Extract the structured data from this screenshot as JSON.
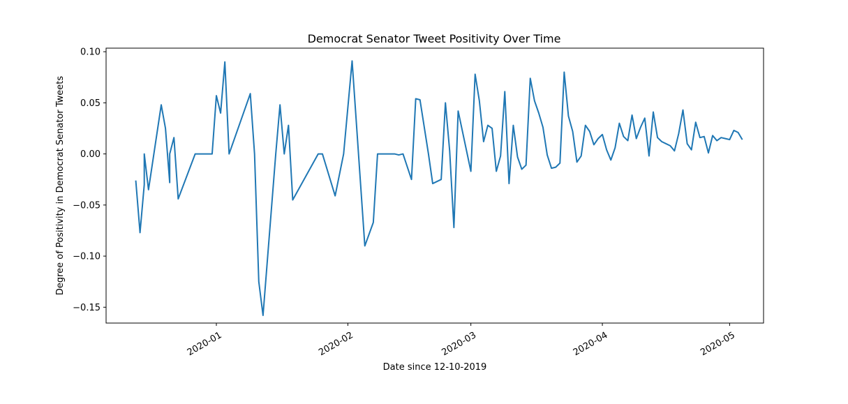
{
  "chart_data": {
    "type": "line",
    "title": "Democrat Senator Tweet Positivity Over Time",
    "xlabel": "Date since 12-10-2019",
    "ylabel": "Degree of Positivity in Democrat Senator Tweets",
    "xlim": [
      "2019-12-06",
      "2020-05-09"
    ],
    "ylim": [
      -0.1655,
      0.1035
    ],
    "x_ticks": [
      {
        "date": "2020-01-01",
        "label": "2020-01"
      },
      {
        "date": "2020-02-01",
        "label": "2020-02"
      },
      {
        "date": "2020-03-01",
        "label": "2020-03"
      },
      {
        "date": "2020-04-01",
        "label": "2020-04"
      },
      {
        "date": "2020-05-01",
        "label": "2020-05"
      }
    ],
    "y_ticks": [
      {
        "value": 0.1,
        "label": "0.10"
      },
      {
        "value": 0.05,
        "label": "0.05"
      },
      {
        "value": 0.0,
        "label": "0.00"
      },
      {
        "value": -0.05,
        "label": "−0.05"
      },
      {
        "value": -0.1,
        "label": "−0.10"
      },
      {
        "value": -0.15,
        "label": "−0.15"
      }
    ],
    "grid": false,
    "line_color": "#1f77b4",
    "series": [
      {
        "x": [
          "2019-12-13",
          "2019-12-14",
          "2019-12-15",
          "2019-12-15",
          "2019-12-16",
          "2019-12-19",
          "2019-12-20",
          "2019-12-21",
          "2019-12-21",
          "2019-12-22",
          "2019-12-23",
          "2019-12-27",
          "2019-12-31",
          "2020-01-01",
          "2020-01-02",
          "2020-01-03",
          "2020-01-04",
          "2020-01-09",
          "2020-01-10",
          "2020-01-11",
          "2020-01-12",
          "2020-01-15",
          "2020-01-16",
          "2020-01-17",
          "2020-01-18",
          "2020-01-19",
          "2020-01-25",
          "2020-01-26",
          "2020-01-29",
          "2020-01-31",
          "2020-02-02",
          "2020-02-05",
          "2020-02-07",
          "2020-02-08",
          "2020-02-10",
          "2020-02-11",
          "2020-02-12",
          "2020-02-13",
          "2020-02-14",
          "2020-02-16",
          "2020-02-17",
          "2020-02-18",
          "2020-02-20",
          "2020-02-21",
          "2020-02-23",
          "2020-02-24",
          "2020-02-25",
          "2020-02-26",
          "2020-02-27",
          "2020-03-01",
          "2020-03-02",
          "2020-03-03",
          "2020-03-04",
          "2020-03-05",
          "2020-03-06",
          "2020-03-07",
          "2020-03-08",
          "2020-03-09",
          "2020-03-10",
          "2020-03-11",
          "2020-03-12",
          "2020-03-13",
          "2020-03-14",
          "2020-03-15",
          "2020-03-16",
          "2020-03-17",
          "2020-03-18",
          "2020-03-19",
          "2020-03-20",
          "2020-03-21",
          "2020-03-22",
          "2020-03-23",
          "2020-03-24",
          "2020-03-25",
          "2020-03-26",
          "2020-03-27",
          "2020-03-28",
          "2020-03-29",
          "2020-03-30",
          "2020-03-31",
          "2020-04-01",
          "2020-04-02",
          "2020-04-03",
          "2020-04-04",
          "2020-04-05",
          "2020-04-06",
          "2020-04-07",
          "2020-04-08",
          "2020-04-09",
          "2020-04-10",
          "2020-04-11",
          "2020-04-12",
          "2020-04-13",
          "2020-04-14",
          "2020-04-15",
          "2020-04-16",
          "2020-04-17",
          "2020-04-18",
          "2020-04-19",
          "2020-04-20",
          "2020-04-21",
          "2020-04-22",
          "2020-04-23",
          "2020-04-24",
          "2020-04-25",
          "2020-04-26",
          "2020-04-27",
          "2020-04-28",
          "2020-04-29",
          "2020-04-30",
          "2020-05-01",
          "2020-05-02",
          "2020-05-03",
          "2020-05-04"
        ],
        "y": [
          -0.026,
          -0.077,
          -0.03,
          0.0,
          -0.035,
          0.048,
          0.025,
          -0.028,
          0.0,
          0.016,
          -0.044,
          0.0,
          0.0,
          0.057,
          0.04,
          0.09,
          0.0,
          0.059,
          0.0,
          -0.125,
          -0.158,
          0.0,
          0.048,
          0.0,
          0.028,
          -0.045,
          0.0,
          0.0,
          -0.041,
          0.0,
          0.091,
          -0.09,
          -0.067,
          0.0,
          0.0,
          0.0,
          0.0,
          -0.001,
          0.0,
          -0.025,
          0.054,
          0.053,
          0.0,
          -0.029,
          -0.025,
          0.05,
          0.003,
          -0.072,
          0.042,
          -0.017,
          0.078,
          0.052,
          0.012,
          0.028,
          0.025,
          -0.017,
          -0.002,
          0.061,
          -0.029,
          0.028,
          -0.003,
          -0.015,
          -0.011,
          0.074,
          0.052,
          0.04,
          0.026,
          -0.001,
          -0.014,
          -0.013,
          -0.009,
          0.08,
          0.037,
          0.022,
          -0.008,
          -0.002,
          0.028,
          0.022,
          0.009,
          0.015,
          0.019,
          0.004,
          -0.006,
          0.006,
          0.03,
          0.017,
          0.013,
          0.038,
          0.015,
          0.026,
          0.035,
          -0.002,
          0.041,
          0.016,
          0.012,
          0.01,
          0.008,
          0.003,
          0.02,
          0.043,
          0.01,
          0.004,
          0.031,
          0.016,
          0.017,
          0.001,
          0.018,
          0.013,
          0.016,
          0.015,
          0.014,
          0.023,
          0.021,
          0.014
        ]
      }
    ]
  }
}
